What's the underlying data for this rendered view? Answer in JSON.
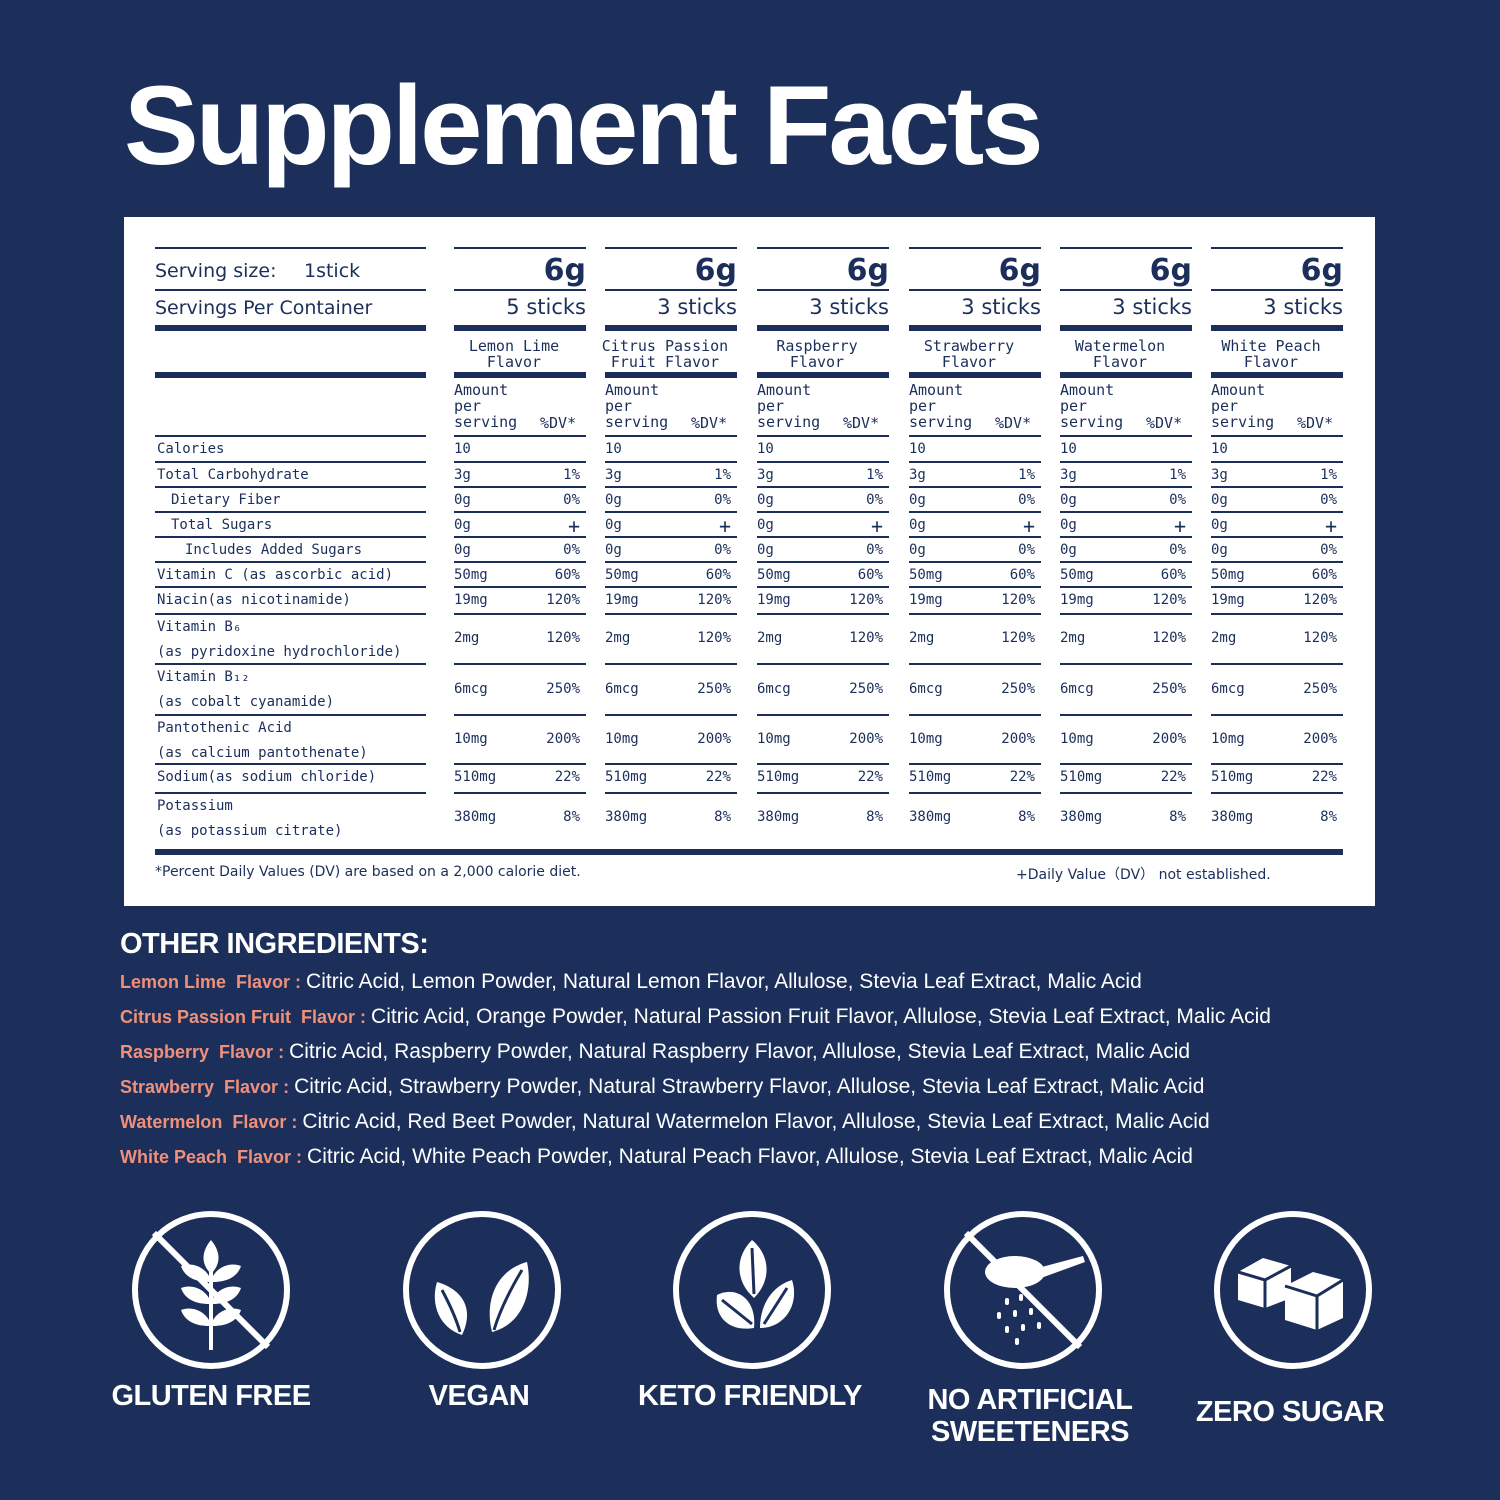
{
  "title": "Supplement Facts",
  "serving": {
    "size_label": "Serving size:",
    "size_value": "1stick",
    "per_container_label": "Servings Per Container"
  },
  "columns": [
    {
      "grams": "6g",
      "sticks": "5 sticks",
      "flavor": [
        "Lemon Lime",
        "Flavor"
      ]
    },
    {
      "grams": "6g",
      "sticks": "3 sticks",
      "flavor": [
        "Citrus Passion",
        "Fruit  Flavor"
      ]
    },
    {
      "grams": "6g",
      "sticks": "3 sticks",
      "flavor": [
        "Raspberry",
        "Flavor"
      ]
    },
    {
      "grams": "6g",
      "sticks": "3 sticks",
      "flavor": [
        "Strawberry",
        "Flavor"
      ]
    },
    {
      "grams": "6g",
      "sticks": "3 sticks",
      "flavor": [
        "Watermelon",
        "Flavor"
      ]
    },
    {
      "grams": "6g",
      "sticks": "3 sticks",
      "flavor": [
        "White Peach",
        "Flavor"
      ]
    }
  ],
  "amount_header": [
    "Amount",
    "per",
    "serving"
  ],
  "dv_header": "%DV*",
  "nutrients": [
    {
      "name": [
        "Calories"
      ],
      "amount": "10",
      "dv": ""
    },
    {
      "name": [
        "Total Carbohydrate"
      ],
      "amount": "3g",
      "dv": "1%"
    },
    {
      "name": [
        "  Dietary Fiber"
      ],
      "amount": "0g",
      "dv": "0%"
    },
    {
      "name": [
        "  Total Sugars"
      ],
      "amount": "0g",
      "dv": "+"
    },
    {
      "name": [
        "    Includes Added Sugars"
      ],
      "amount": "0g",
      "dv": "0%"
    },
    {
      "name": [
        "Vitamin C (as ascorbic acid)"
      ],
      "amount": "50mg",
      "dv": "60%"
    },
    {
      "name": [
        "Niacin(as nicotinamide)"
      ],
      "amount": "19mg",
      "dv": "120%"
    },
    {
      "name": [
        "Vitamin B₆",
        "(as pyridoxine hydrochloride)"
      ],
      "amount": "2mg",
      "dv": "120%"
    },
    {
      "name": [
        "Vitamin B₁₂",
        "(as cobalt cyanamide)"
      ],
      "amount": "6mcg",
      "dv": "250%"
    },
    {
      "name": [
        "Pantothenic Acid",
        "(as calcium pantothenate)"
      ],
      "amount": "10mg",
      "dv": "200%"
    },
    {
      "name": [
        "Sodium(as sodium chloride)"
      ],
      "amount": "510mg",
      "dv": "22%"
    },
    {
      "name": [
        "Potassium",
        "(as potassium citrate)"
      ],
      "amount": "380mg",
      "dv": "8%"
    }
  ],
  "footnote_left": "*Percent Daily Values (DV) are based on a 2,000 calorie diet.",
  "footnote_right": "+Daily Value（DV） not established.",
  "other_ingredients": {
    "heading": "OTHER INGREDIENTS:",
    "rows": [
      {
        "flavor": "Lemon Lime  Flavor",
        "text": "Citric Acid, Lemon Powder, Natural Lemon Flavor, Allulose, Stevia Leaf Extract, Malic Acid"
      },
      {
        "flavor": "Citrus Passion Fruit  Flavor",
        "text": "Citric Acid, Orange Powder, Natural Passion Fruit Flavor, Allulose, Stevia Leaf Extract, Malic Acid"
      },
      {
        "flavor": "Raspberry  Flavor",
        "text": "Citric Acid, Raspberry Powder, Natural Raspberry Flavor, Allulose, Stevia Leaf Extract, Malic Acid"
      },
      {
        "flavor": "Strawberry  Flavor",
        "text": "Citric Acid, Strawberry Powder, Natural Strawberry Flavor, Allulose, Stevia Leaf Extract, Malic Acid"
      },
      {
        "flavor": "Watermelon  Flavor",
        "text": "Citric Acid, Red Beet Powder, Natural Watermelon Flavor, Allulose, Stevia Leaf Extract, Malic Acid"
      },
      {
        "flavor": "White Peach  Flavor",
        "text": "Citric Acid, White Peach Powder, Natural Peach Flavor, Allulose, Stevia Leaf Extract, Malic Acid"
      }
    ]
  },
  "badges": [
    {
      "label": [
        "GLUTEN FREE"
      ],
      "icon": "wheat-crossed-icon"
    },
    {
      "label": [
        "VEGAN"
      ],
      "icon": "leaves-icon"
    },
    {
      "label": [
        "KETO FRIENDLY"
      ],
      "icon": "seeds-icon"
    },
    {
      "label": [
        "NO ARTIFICIAL",
        "SWEETENERS"
      ],
      "icon": "sweetener-crossed-icon"
    },
    {
      "label": [
        "ZERO SUGAR"
      ],
      "icon": "sugar-cubes-icon"
    }
  ],
  "colors": {
    "background": "#1b2f5a",
    "panel": "#ffffff",
    "accent": "#f0907a"
  }
}
